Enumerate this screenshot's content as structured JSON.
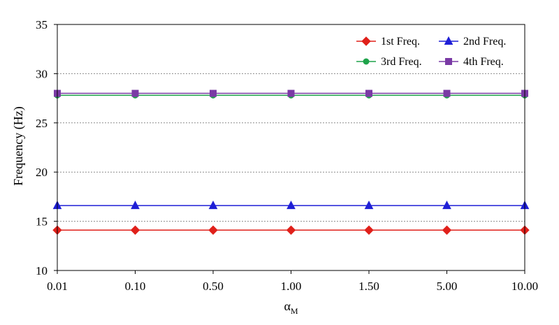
{
  "chart_data": {
    "type": "line",
    "title": "",
    "xlabel": "α",
    "xlabel_subscript": "M",
    "ylabel": "Frequency (Hz)",
    "categories": [
      "0.01",
      "0.10",
      "0.50",
      "1.00",
      "1.50",
      "5.00",
      "10.00"
    ],
    "ylim": [
      10,
      35
    ],
    "yticks": [
      10,
      15,
      20,
      25,
      30,
      35
    ],
    "grid": "horizontal-dotted",
    "legend_position": "top-right",
    "series": [
      {
        "name": "1st Freq.",
        "values": [
          14.1,
          14.1,
          14.1,
          14.1,
          14.1,
          14.1,
          14.1
        ],
        "color": "#e0201a",
        "marker": "diamond"
      },
      {
        "name": "2nd Freq.",
        "values": [
          16.6,
          16.6,
          16.6,
          16.6,
          16.6,
          16.6,
          16.6
        ],
        "color": "#1f1fd6",
        "marker": "triangle"
      },
      {
        "name": "3rd Freq.",
        "values": [
          27.8,
          27.8,
          27.8,
          27.8,
          27.8,
          27.8,
          27.8
        ],
        "color": "#1ea34a",
        "marker": "circle"
      },
      {
        "name": "4th Freq.",
        "values": [
          28.0,
          28.0,
          28.0,
          28.0,
          28.0,
          28.0,
          28.0
        ],
        "color": "#7a3aa5",
        "marker": "square"
      }
    ]
  }
}
